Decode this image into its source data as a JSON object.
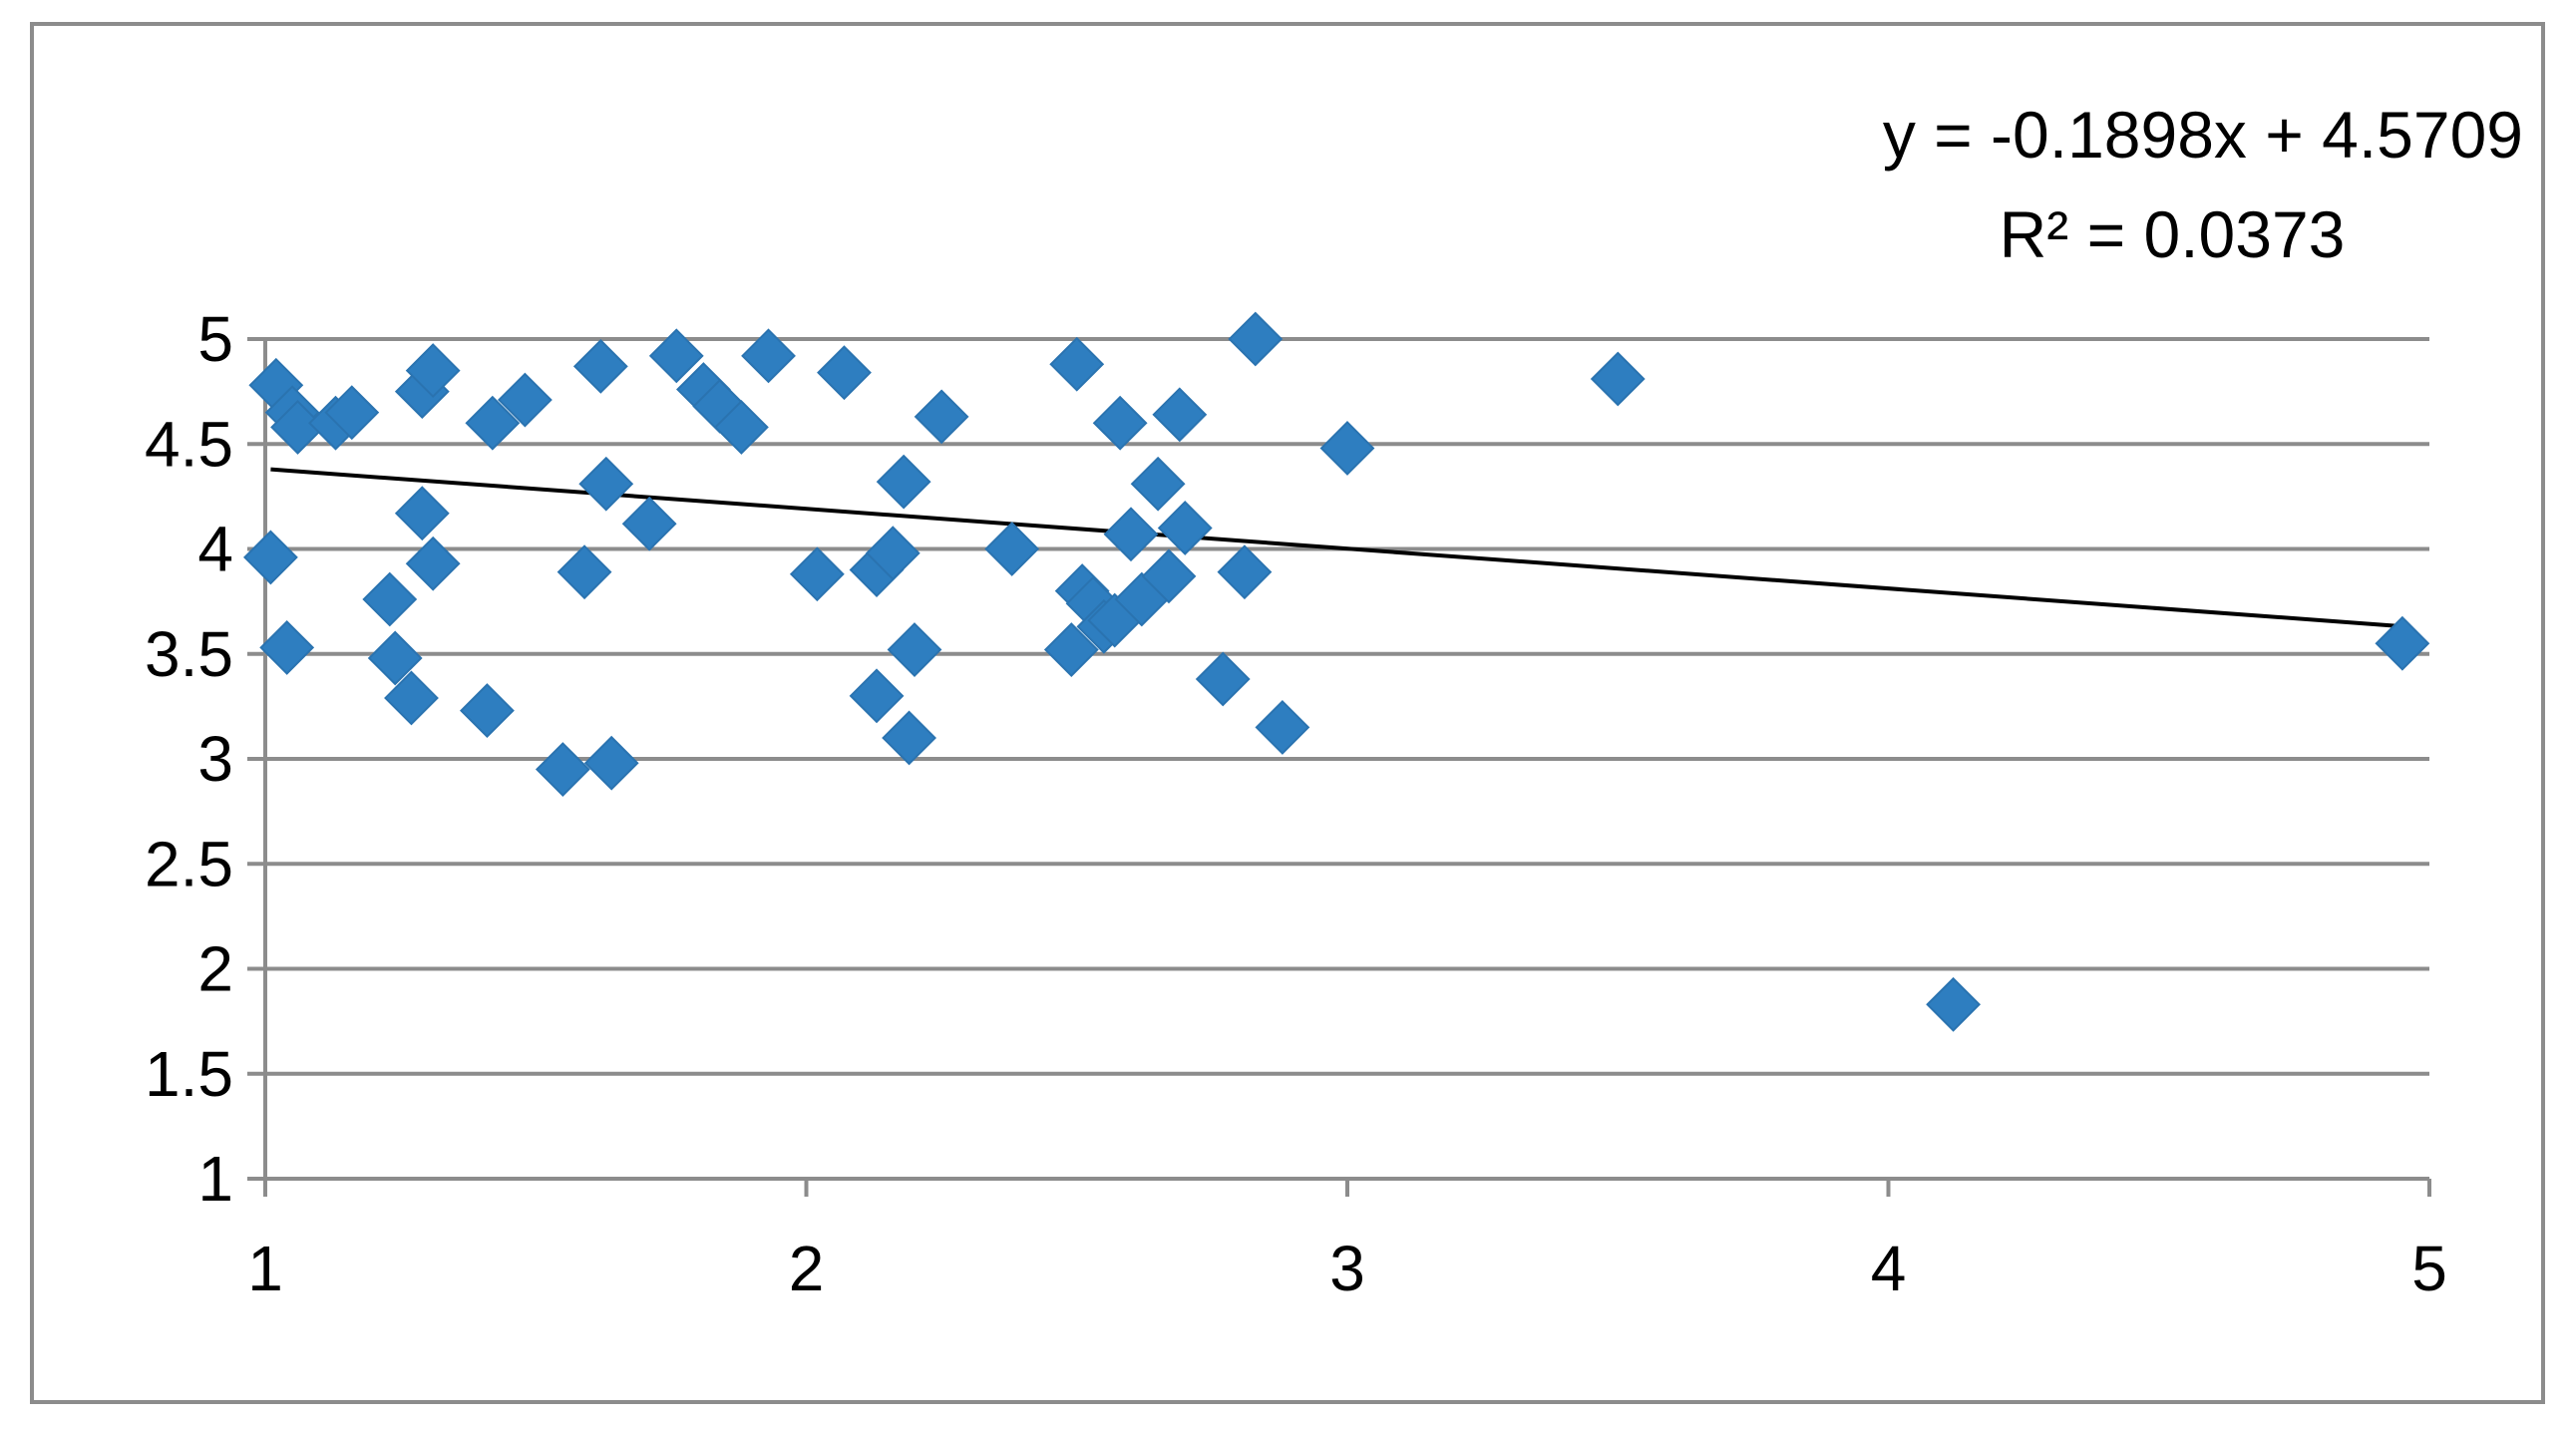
{
  "chart_data": {
    "type": "scatter",
    "title": "",
    "xlabel": "",
    "ylabel": "",
    "xlim": [
      1,
      5
    ],
    "ylim": [
      1,
      5
    ],
    "x_ticks": [
      "1",
      "2",
      "3",
      "4",
      "5"
    ],
    "y_ticks": [
      "1",
      "1.5",
      "2",
      "2.5",
      "3",
      "3.5",
      "4",
      "4.5",
      "5"
    ],
    "grid": "horizontal",
    "legend": "none",
    "marker": "diamond",
    "colors": {
      "points": "#2e7ec0",
      "trendline": "#000000",
      "grid": "#8c8c8c",
      "axis": "#8c8c8c"
    },
    "points": [
      [
        1.02,
        4.78
      ],
      [
        1.05,
        4.65
      ],
      [
        1.06,
        4.58
      ],
      [
        1.13,
        4.6
      ],
      [
        1.16,
        4.65
      ],
      [
        1.01,
        3.96
      ],
      [
        1.04,
        3.53
      ],
      [
        1.29,
        4.75
      ],
      [
        1.31,
        4.85
      ],
      [
        1.29,
        4.17
      ],
      [
        1.31,
        3.93
      ],
      [
        1.23,
        3.76
      ],
      [
        1.24,
        3.48
      ],
      [
        1.27,
        3.29
      ],
      [
        1.41,
        3.23
      ],
      [
        1.42,
        4.6
      ],
      [
        1.48,
        4.71
      ],
      [
        1.62,
        4.87
      ],
      [
        1.63,
        4.31
      ],
      [
        1.59,
        3.89
      ],
      [
        1.55,
        2.95
      ],
      [
        1.64,
        2.98
      ],
      [
        1.71,
        4.12
      ],
      [
        1.76,
        4.92
      ],
      [
        1.81,
        4.76
      ],
      [
        1.84,
        4.68
      ],
      [
        1.88,
        4.58
      ],
      [
        1.93,
        4.92
      ],
      [
        2.02,
        3.88
      ],
      [
        2.07,
        4.84
      ],
      [
        2.13,
        3.9
      ],
      [
        2.16,
        3.98
      ],
      [
        2.13,
        3.3
      ],
      [
        2.18,
        4.32
      ],
      [
        2.2,
        3.52
      ],
      [
        2.19,
        3.1
      ],
      [
        2.25,
        4.63
      ],
      [
        2.38,
        4.0
      ],
      [
        2.5,
        4.88
      ],
      [
        2.51,
        3.8
      ],
      [
        2.49,
        3.52
      ],
      [
        2.53,
        3.74
      ],
      [
        2.55,
        3.63
      ],
      [
        2.57,
        3.66
      ],
      [
        2.58,
        4.6
      ],
      [
        2.6,
        4.07
      ],
      [
        2.62,
        3.76
      ],
      [
        2.65,
        4.31
      ],
      [
        2.67,
        3.87
      ],
      [
        2.7,
        4.1
      ],
      [
        2.69,
        4.64
      ],
      [
        2.77,
        3.38
      ],
      [
        2.81,
        3.89
      ],
      [
        2.83,
        5.0
      ],
      [
        2.88,
        3.15
      ],
      [
        3.0,
        4.48
      ],
      [
        3.5,
        4.81
      ],
      [
        4.12,
        1.83
      ],
      [
        4.95,
        3.55
      ]
    ],
    "trendline": {
      "type": "linear",
      "slope": -0.1898,
      "intercept": 4.5709,
      "equation_label": "y = -0.1898x + 4.5709",
      "r2_label": "R² = 0.0373"
    }
  }
}
